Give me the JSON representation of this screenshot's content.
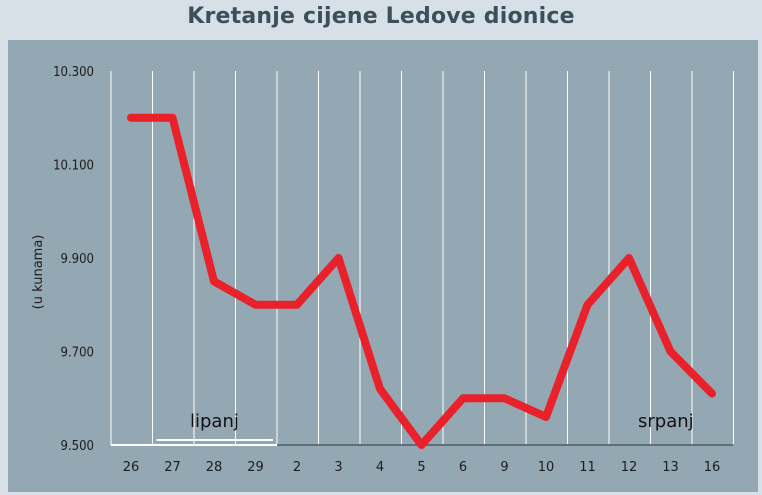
{
  "title": "Kretanje cijene Ledove dionice",
  "colors": {
    "line": "#e8212a",
    "panel": "#93a8b3",
    "background": "#d6e0e6",
    "grid": "#ffffff"
  },
  "chart_data": {
    "type": "line",
    "title": "Kretanje cijene Ledove dionice",
    "ylabel": "(u kunama)",
    "xlabel": "",
    "ylim": [
      9500,
      10300
    ],
    "yticks": [
      "10.300",
      "10.100",
      "9.900",
      "9.700",
      "9.500"
    ],
    "ytick_values": [
      10300,
      10100,
      9900,
      9700,
      9500
    ],
    "categories": [
      "26",
      "27",
      "28",
      "29",
      "2",
      "3",
      "4",
      "5",
      "6",
      "9",
      "10",
      "11",
      "12",
      "13",
      "16"
    ],
    "values": [
      10200,
      10200,
      9850,
      9800,
      9800,
      9900,
      9620,
      9500,
      9600,
      9600,
      9560,
      9800,
      9900,
      9700,
      9610
    ],
    "annotations": [
      "lipanj",
      "srpanj"
    ],
    "grid": "vertical"
  }
}
